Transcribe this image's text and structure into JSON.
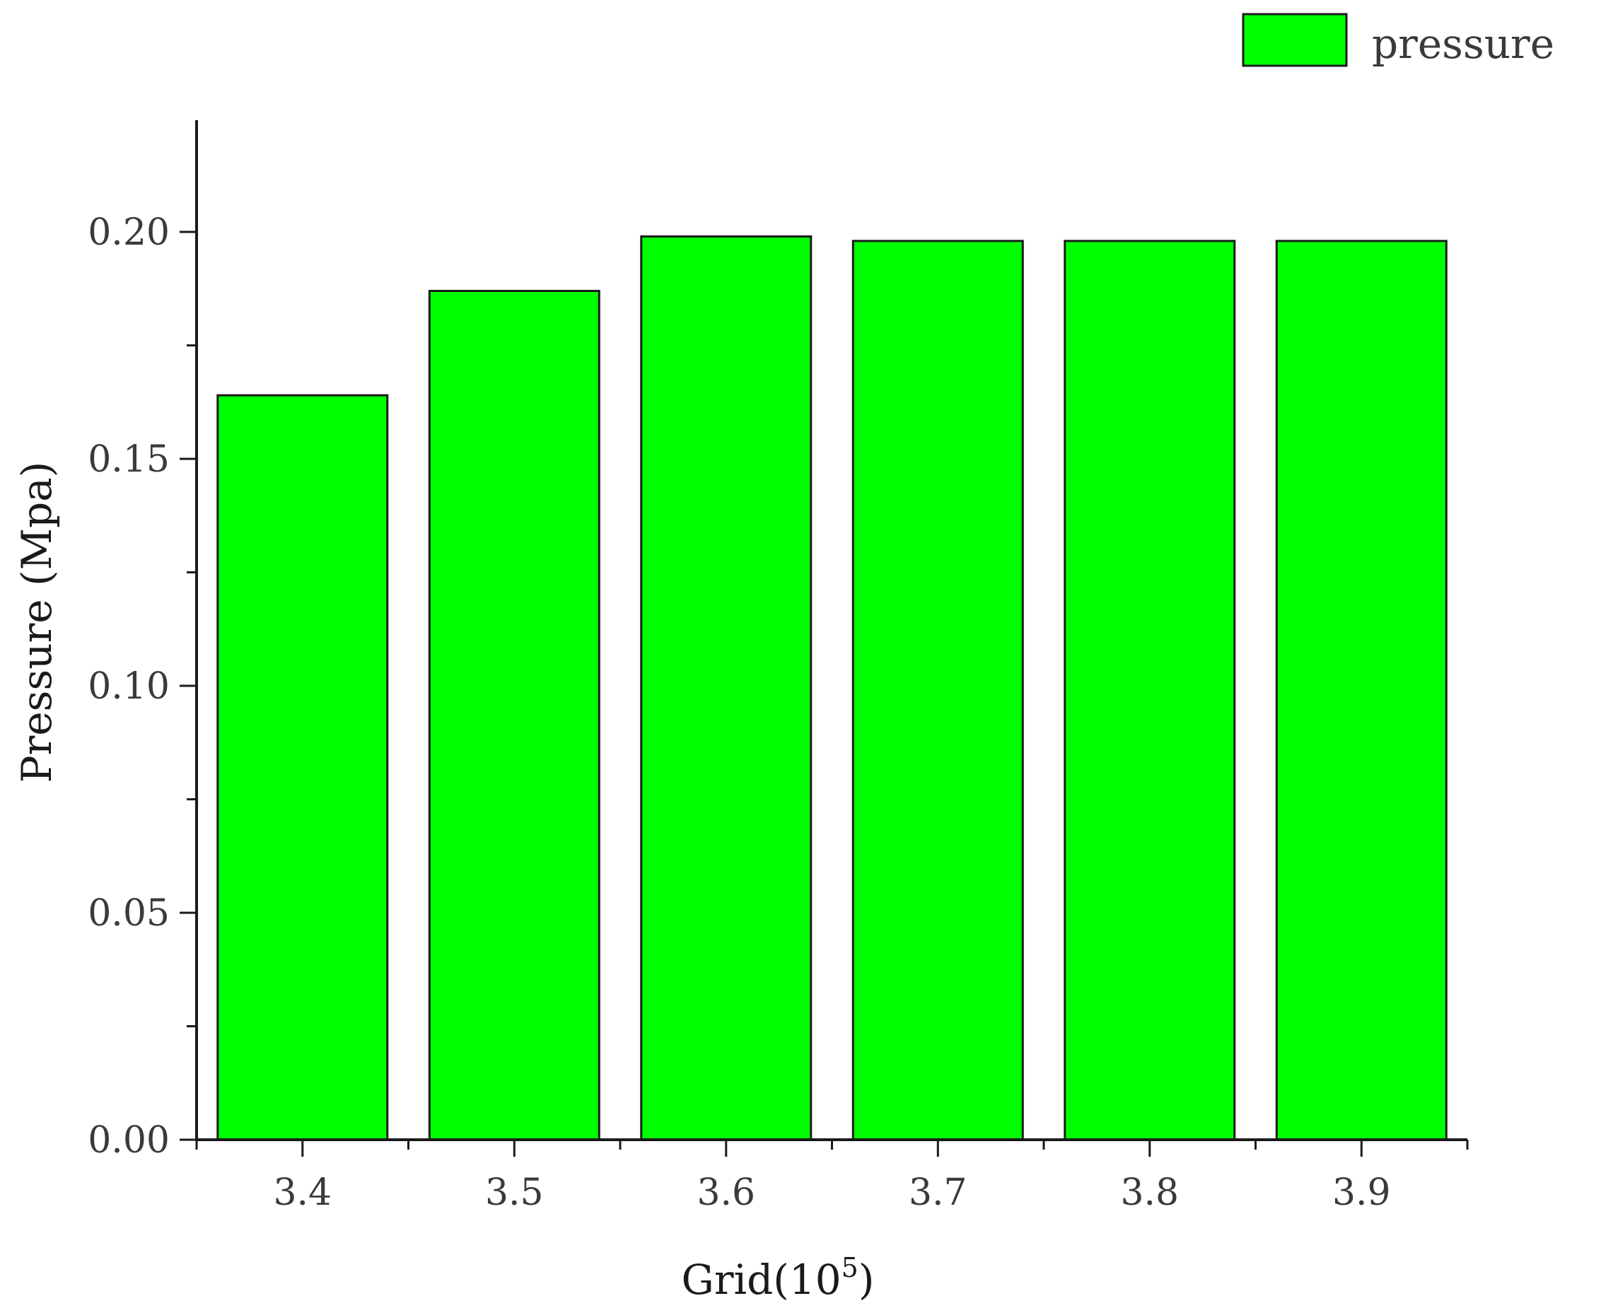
{
  "chart_data": {
    "type": "bar",
    "categories": [
      "3.4",
      "3.5",
      "3.6",
      "3.7",
      "3.8",
      "3.9"
    ],
    "series": [
      {
        "name": "pressure",
        "values": [
          0.164,
          0.187,
          0.199,
          0.198,
          0.198,
          0.198
        ],
        "color": "#00ff00"
      }
    ],
    "xlabel": "Grid(10",
    "xlabel_superscript": "5",
    "xlabel_suffix": ")",
    "ylabel": "Pressure (Mpa)",
    "yticks": [
      "0.00",
      "0.05",
      "0.10",
      "0.15",
      "0.20"
    ],
    "ylim": [
      0,
      0.2
    ],
    "legend_position": "top-right",
    "grid": false,
    "bar_outline_color": "#1a1a1a",
    "axis_color": "#1a1a1a"
  }
}
